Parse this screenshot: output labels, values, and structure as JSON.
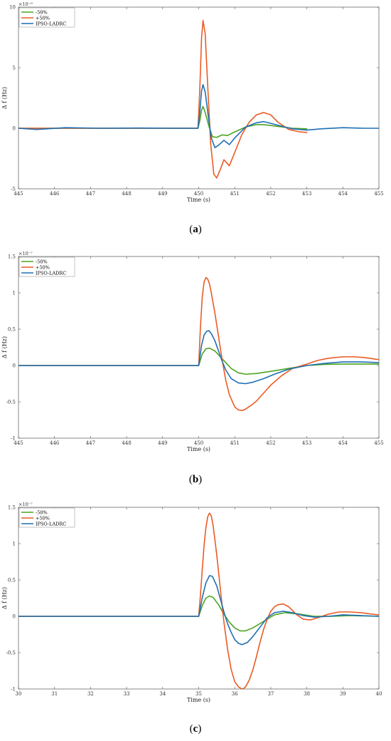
{
  "colors": {
    "minus50": "#4DA421",
    "plus50": "#EA5B24",
    "ipso": "#1F6FB5",
    "axis": "#555555"
  },
  "chart_data": [
    {
      "type": "line",
      "caption_open": "(",
      "caption_letter": "a",
      "caption_close": ")",
      "exponent_label": "×10⁻⁹",
      "xlabel": "Time (s)",
      "ylabel": "Δ f (Hz)",
      "xlim": [
        445,
        455
      ],
      "ylim": [
        -5,
        10
      ],
      "xticks": [
        445,
        446,
        447,
        448,
        449,
        450,
        451,
        452,
        453,
        454,
        455
      ],
      "yticks": [
        -5,
        0,
        5,
        10
      ],
      "legend": [
        "-50%",
        "+50%",
        "IPSO-LADRC"
      ],
      "series": [
        {
          "name": "-50%",
          "x": [
            445,
            449.98,
            450.03,
            450.08,
            450.12,
            450.18,
            450.28,
            450.38,
            450.5,
            450.65,
            450.8,
            451,
            451.3,
            451.6,
            451.8,
            452.2,
            452.6,
            453
          ],
          "values": [
            0,
            0,
            0.6,
            1.5,
            1.8,
            1.3,
            0.2,
            -0.7,
            -0.75,
            -0.55,
            -0.6,
            -0.3,
            0.1,
            0.3,
            0.3,
            0.15,
            0,
            -0.05
          ]
        },
        {
          "name": "+50%",
          "x": [
            445,
            449.98,
            450.03,
            450.08,
            450.12,
            450.18,
            450.25,
            450.33,
            450.42,
            450.5,
            450.6,
            450.7,
            450.85,
            451,
            451.2,
            451.4,
            451.6,
            451.8,
            452,
            452.2,
            452.5,
            452.8,
            453
          ],
          "values": [
            0,
            0,
            3.2,
            7.5,
            8.9,
            7.8,
            3.5,
            -1.2,
            -3.8,
            -4.1,
            -3.4,
            -2.6,
            -3.1,
            -2.0,
            -0.5,
            0.5,
            1.1,
            1.3,
            1.1,
            0.5,
            -0.1,
            -0.3,
            -0.35
          ]
        },
        {
          "name": "IPSO-LADRC",
          "x": [
            445,
            445.5,
            446.3,
            447.3,
            448.3,
            449.3,
            449.98,
            450.03,
            450.08,
            450.12,
            450.18,
            450.27,
            450.35,
            450.45,
            450.55,
            450.7,
            450.85,
            451,
            451.3,
            451.6,
            451.8,
            452.2,
            452.6,
            453,
            453.4,
            454,
            454.6,
            455
          ],
          "values": [
            0,
            -0.1,
            0.05,
            0,
            0.02,
            0,
            0,
            1.3,
            3.1,
            3.6,
            3.0,
            0.9,
            -0.8,
            -1.6,
            -1.4,
            -1.0,
            -1.35,
            -0.8,
            0.1,
            0.45,
            0.55,
            0.25,
            -0.05,
            -0.15,
            -0.05,
            0.05,
            0,
            0
          ]
        }
      ]
    },
    {
      "type": "line",
      "caption_open": "(",
      "caption_letter": "b",
      "caption_close": ")",
      "exponent_label": "×10⁻⁷",
      "xlabel": "Time (s)",
      "ylabel": "Δ f (Hz)",
      "xlim": [
        445,
        455
      ],
      "ylim": [
        -1,
        1.5
      ],
      "xticks": [
        445,
        446,
        447,
        448,
        449,
        450,
        451,
        452,
        453,
        454,
        455
      ],
      "yticks": [
        -1,
        -0.5,
        0,
        0.5,
        1,
        1.5
      ],
      "legend": [
        "-50%",
        "+50%",
        "IPSO-LADRC"
      ],
      "series": [
        {
          "name": "-50%",
          "x": [
            445,
            450,
            450.1,
            450.2,
            450.3,
            450.45,
            450.6,
            450.75,
            450.9,
            451.1,
            451.3,
            451.6,
            452,
            452.5,
            453,
            453.5,
            454,
            454.5,
            455
          ],
          "values": [
            0,
            0,
            0.16,
            0.23,
            0.24,
            0.2,
            0.12,
            0.04,
            -0.04,
            -0.1,
            -0.12,
            -0.11,
            -0.08,
            -0.04,
            0,
            0.015,
            0.02,
            0.02,
            0.02
          ]
        },
        {
          "name": "+50%",
          "x": [
            445,
            450,
            450.05,
            450.1,
            450.15,
            450.2,
            450.25,
            450.3,
            450.35,
            450.45,
            450.55,
            450.65,
            450.75,
            450.85,
            451,
            451.1,
            451.2,
            451.3,
            451.45,
            451.6,
            451.8,
            452,
            452.3,
            452.6,
            453,
            453.3,
            453.6,
            454,
            454.3,
            454.6,
            455
          ],
          "values": [
            0,
            0,
            0.55,
            0.95,
            1.15,
            1.21,
            1.19,
            1.12,
            1.0,
            0.72,
            0.4,
            0.08,
            -0.2,
            -0.4,
            -0.57,
            -0.61,
            -0.62,
            -0.6,
            -0.55,
            -0.49,
            -0.38,
            -0.27,
            -0.14,
            -0.04,
            0.02,
            0.07,
            0.1,
            0.12,
            0.12,
            0.11,
            0.08
          ]
        },
        {
          "name": "IPSO-LADRC",
          "x": [
            445,
            450,
            450.08,
            450.15,
            450.22,
            450.28,
            450.35,
            450.45,
            450.55,
            450.65,
            450.75,
            450.9,
            451.1,
            451.3,
            451.5,
            451.8,
            452.1,
            452.5,
            453,
            453.5,
            454,
            454.5,
            455
          ],
          "values": [
            0,
            0,
            0.28,
            0.42,
            0.47,
            0.48,
            0.44,
            0.34,
            0.2,
            0.06,
            -0.06,
            -0.18,
            -0.24,
            -0.25,
            -0.23,
            -0.18,
            -0.12,
            -0.05,
            0,
            0.03,
            0.05,
            0.05,
            0.04
          ]
        }
      ]
    },
    {
      "type": "line",
      "caption_open": "(",
      "caption_letter": "c",
      "caption_close": ")",
      "exponent_label": "×10⁻⁷",
      "xlabel": "Time (s)",
      "ylabel": "Δ f (Hz)",
      "xlim": [
        30,
        40
      ],
      "ylim": [
        -1,
        1.5
      ],
      "xticks": [
        30,
        31,
        32,
        33,
        34,
        35,
        36,
        37,
        38,
        39,
        40
      ],
      "yticks": [
        -1,
        -0.5,
        0,
        0.5,
        1,
        1.5
      ],
      "legend": [
        "-50%",
        "+50%",
        "IPSO-LADRC"
      ],
      "series": [
        {
          "name": "-50%",
          "x": [
            30,
            35,
            35.1,
            35.2,
            35.3,
            35.4,
            35.55,
            35.7,
            35.85,
            36,
            36.15,
            36.3,
            36.5,
            36.8,
            37.1,
            37.4,
            37.8,
            38.2,
            38.7,
            39.2,
            40
          ],
          "values": [
            0,
            0,
            0.15,
            0.25,
            0.28,
            0.26,
            0.16,
            0.03,
            -0.08,
            -0.16,
            -0.2,
            -0.2,
            -0.16,
            -0.07,
            0.02,
            0.05,
            0.03,
            0,
            0,
            0.01,
            0
          ]
        },
        {
          "name": "+50%",
          "x": [
            30,
            35,
            35.05,
            35.1,
            35.15,
            35.2,
            35.25,
            35.3,
            35.35,
            35.4,
            35.5,
            35.6,
            35.7,
            35.8,
            35.9,
            36,
            36.1,
            36.2,
            36.25,
            36.3,
            36.4,
            36.5,
            36.6,
            36.7,
            36.8,
            36.9,
            37,
            37.1,
            37.2,
            37.35,
            37.5,
            37.7,
            37.9,
            38.1,
            38.3,
            38.6,
            38.9,
            39.2,
            39.5,
            39.8,
            40
          ],
          "values": [
            0,
            0,
            0.3,
            0.65,
            0.98,
            1.22,
            1.37,
            1.42,
            1.38,
            1.25,
            0.85,
            0.38,
            -0.08,
            -0.45,
            -0.73,
            -0.9,
            -0.97,
            -1.0,
            -0.99,
            -0.97,
            -0.88,
            -0.74,
            -0.56,
            -0.36,
            -0.18,
            -0.04,
            0.07,
            0.13,
            0.16,
            0.17,
            0.13,
            0.03,
            -0.04,
            -0.05,
            -0.02,
            0.03,
            0.06,
            0.06,
            0.05,
            0.03,
            0.02
          ]
        },
        {
          "name": "IPSO-LADRC",
          "x": [
            30,
            35,
            35.1,
            35.2,
            35.3,
            35.38,
            35.5,
            35.6,
            35.7,
            35.8,
            35.9,
            36,
            36.1,
            36.2,
            36.35,
            36.5,
            36.7,
            36.9,
            37.1,
            37.35,
            37.6,
            37.9,
            38.2,
            38.6,
            39,
            39.5,
            40
          ],
          "values": [
            0,
            0,
            0.26,
            0.46,
            0.56,
            0.55,
            0.42,
            0.24,
            0.06,
            -0.1,
            -0.22,
            -0.32,
            -0.37,
            -0.39,
            -0.36,
            -0.28,
            -0.15,
            -0.02,
            0.05,
            0.07,
            0.05,
            0.01,
            -0.01,
            0,
            0.02,
            0.01,
            0
          ]
        }
      ]
    }
  ]
}
